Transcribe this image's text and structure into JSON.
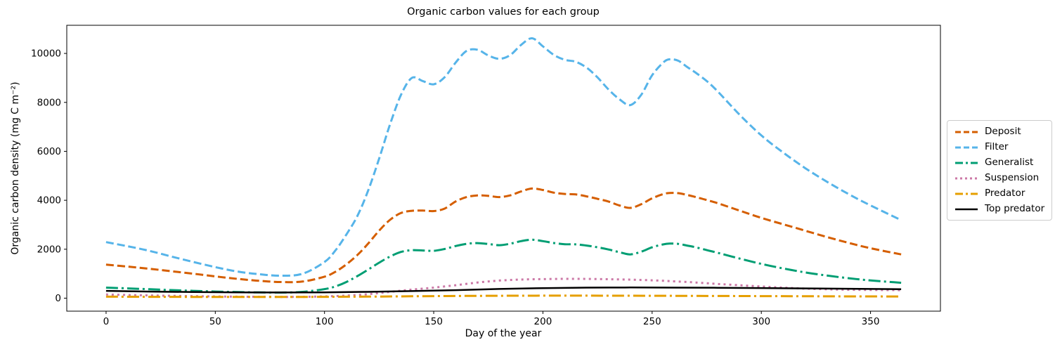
{
  "chart_data": {
    "type": "line",
    "title": "Organic carbon values for each group",
    "xlabel": "Day of the year",
    "ylabel": "Organic carbon density (mg C m⁻²)",
    "xlim": [
      -18,
      382
    ],
    "ylim": [
      -530,
      11150
    ],
    "xticks": [
      0,
      50,
      100,
      150,
      200,
      250,
      300,
      350
    ],
    "yticks": [
      0,
      2000,
      4000,
      6000,
      8000,
      10000
    ],
    "grid": false,
    "legend_position": "center-right-outside",
    "series": [
      {
        "name": "Deposit",
        "color": "#d55e00",
        "style": "dashed",
        "width": 3,
        "x": [
          0,
          10,
          20,
          30,
          40,
          50,
          60,
          70,
          80,
          90,
          100,
          105,
          110,
          115,
          120,
          125,
          130,
          135,
          140,
          145,
          150,
          155,
          160,
          165,
          170,
          175,
          180,
          185,
          190,
          195,
          200,
          205,
          210,
          215,
          220,
          225,
          230,
          235,
          240,
          245,
          250,
          255,
          258,
          262,
          266,
          270,
          275,
          280,
          290,
          300,
          310,
          320,
          330,
          340,
          350,
          364
        ],
        "y": [
          1370,
          1290,
          1200,
          1100,
          1000,
          890,
          790,
          710,
          660,
          680,
          880,
          1080,
          1380,
          1760,
          2230,
          2760,
          3200,
          3480,
          3570,
          3580,
          3560,
          3660,
          3950,
          4130,
          4200,
          4180,
          4130,
          4200,
          4360,
          4480,
          4420,
          4310,
          4260,
          4240,
          4160,
          4060,
          3950,
          3790,
          3690,
          3840,
          4080,
          4250,
          4300,
          4290,
          4220,
          4130,
          4010,
          3880,
          3580,
          3280,
          3020,
          2760,
          2500,
          2260,
          2040,
          1790
        ]
      },
      {
        "name": "Filter",
        "color": "#56b4e9",
        "style": "dashed",
        "width": 3,
        "x": [
          0,
          10,
          20,
          30,
          40,
          50,
          60,
          70,
          80,
          90,
          100,
          105,
          110,
          115,
          120,
          125,
          130,
          135,
          140,
          145,
          150,
          155,
          160,
          165,
          170,
          175,
          180,
          185,
          190,
          195,
          200,
          205,
          210,
          215,
          220,
          225,
          230,
          235,
          240,
          245,
          250,
          255,
          258,
          262,
          266,
          270,
          275,
          280,
          290,
          300,
          310,
          320,
          330,
          340,
          350,
          364
        ],
        "y": [
          2290,
          2120,
          1930,
          1700,
          1480,
          1270,
          1090,
          980,
          920,
          1000,
          1480,
          1950,
          2600,
          3350,
          4400,
          5700,
          7100,
          8300,
          9000,
          8870,
          8740,
          9030,
          9620,
          10100,
          10150,
          9920,
          9780,
          9930,
          10350,
          10620,
          10290,
          9940,
          9740,
          9660,
          9420,
          9020,
          8530,
          8130,
          7890,
          8310,
          9110,
          9620,
          9760,
          9700,
          9450,
          9210,
          8870,
          8450,
          7500,
          6650,
          5950,
          5320,
          4760,
          4250,
          3790,
          3190
        ]
      },
      {
        "name": "Generalist",
        "color": "#009e73",
        "style": "dashdot",
        "width": 3,
        "x": [
          0,
          10,
          20,
          30,
          40,
          50,
          60,
          70,
          80,
          90,
          100,
          105,
          110,
          115,
          120,
          125,
          130,
          135,
          140,
          145,
          150,
          155,
          160,
          165,
          170,
          175,
          180,
          185,
          190,
          195,
          200,
          205,
          210,
          215,
          220,
          225,
          230,
          235,
          240,
          245,
          250,
          255,
          258,
          262,
          266,
          270,
          275,
          280,
          290,
          300,
          310,
          320,
          330,
          340,
          350,
          364
        ],
        "y": [
          430,
          400,
          365,
          330,
          300,
          272,
          250,
          236,
          230,
          258,
          370,
          480,
          660,
          900,
          1170,
          1450,
          1700,
          1890,
          1960,
          1950,
          1935,
          2010,
          2130,
          2220,
          2250,
          2215,
          2165,
          2225,
          2330,
          2390,
          2330,
          2255,
          2205,
          2200,
          2150,
          2080,
          1990,
          1880,
          1790,
          1900,
          2080,
          2195,
          2230,
          2220,
          2150,
          2080,
          1965,
          1855,
          1620,
          1400,
          1215,
          1055,
          925,
          815,
          725,
          630
        ]
      },
      {
        "name": "Suspension",
        "color": "#cc79a7",
        "style": "dotted",
        "width": 3,
        "x": [
          0,
          10,
          20,
          30,
          40,
          50,
          60,
          70,
          80,
          90,
          100,
          105,
          110,
          115,
          120,
          125,
          130,
          135,
          140,
          145,
          150,
          155,
          160,
          165,
          170,
          175,
          180,
          185,
          190,
          195,
          200,
          205,
          210,
          215,
          220,
          225,
          230,
          235,
          240,
          245,
          250,
          255,
          258,
          262,
          266,
          270,
          275,
          280,
          290,
          300,
          310,
          320,
          330,
          340,
          350,
          364
        ],
        "y": [
          150,
          130,
          112,
          96,
          82,
          71,
          62,
          56,
          52,
          55,
          72,
          85,
          105,
          130,
          165,
          210,
          258,
          305,
          350,
          390,
          430,
          480,
          530,
          585,
          640,
          685,
          720,
          745,
          762,
          772,
          780,
          786,
          790,
          790,
          788,
          782,
          775,
          767,
          758,
          745,
          730,
          712,
          698,
          682,
          664,
          640,
          612,
          582,
          528,
          478,
          432,
          392,
          362,
          345,
          336,
          328
        ]
      },
      {
        "name": "Predator",
        "color": "#e69f00",
        "style": "dashdot",
        "width": 3,
        "x": [
          0,
          20,
          40,
          60,
          80,
          100,
          120,
          140,
          160,
          180,
          200,
          220,
          240,
          260,
          280,
          300,
          320,
          340,
          364
        ],
        "y": [
          62,
          56,
          52,
          50,
          50,
          55,
          64,
          78,
          91,
          99,
          103,
          103,
          100,
          97,
          91,
          85,
          79,
          74,
          69
        ]
      },
      {
        "name": "Top predator",
        "color": "#000000",
        "style": "solid",
        "width": 2.5,
        "x": [
          0,
          20,
          40,
          60,
          80,
          100,
          120,
          140,
          160,
          180,
          200,
          220,
          240,
          260,
          280,
          300,
          320,
          340,
          364
        ],
        "y": [
          300,
          270,
          250,
          240,
          234,
          240,
          258,
          290,
          328,
          378,
          410,
          430,
          436,
          432,
          425,
          414,
          400,
          386,
          368
        ]
      }
    ]
  }
}
